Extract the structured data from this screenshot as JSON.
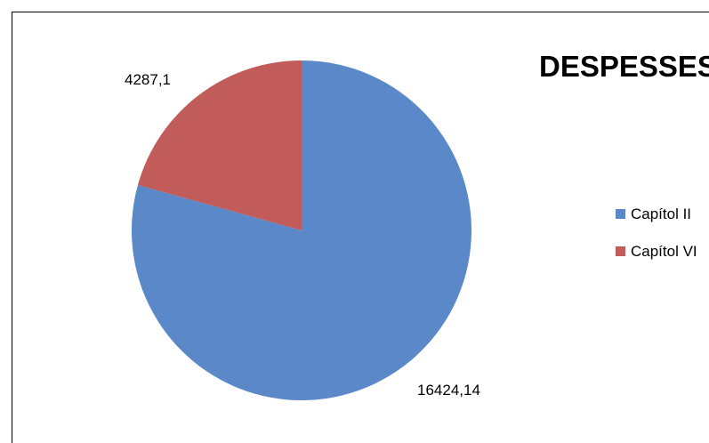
{
  "chart_data": {
    "type": "pie",
    "title": "DESPESSES",
    "categories": [
      "Capítol II",
      "Capítol VI"
    ],
    "values": [
      16424.14,
      4287.1
    ],
    "data_labels": [
      "16424,14",
      "4287,1"
    ],
    "colors": [
      "#5a88c9",
      "#c25c5a"
    ],
    "legend": {
      "placement": "right",
      "entries": [
        "Capítol II",
        "Capítol VI"
      ]
    }
  }
}
